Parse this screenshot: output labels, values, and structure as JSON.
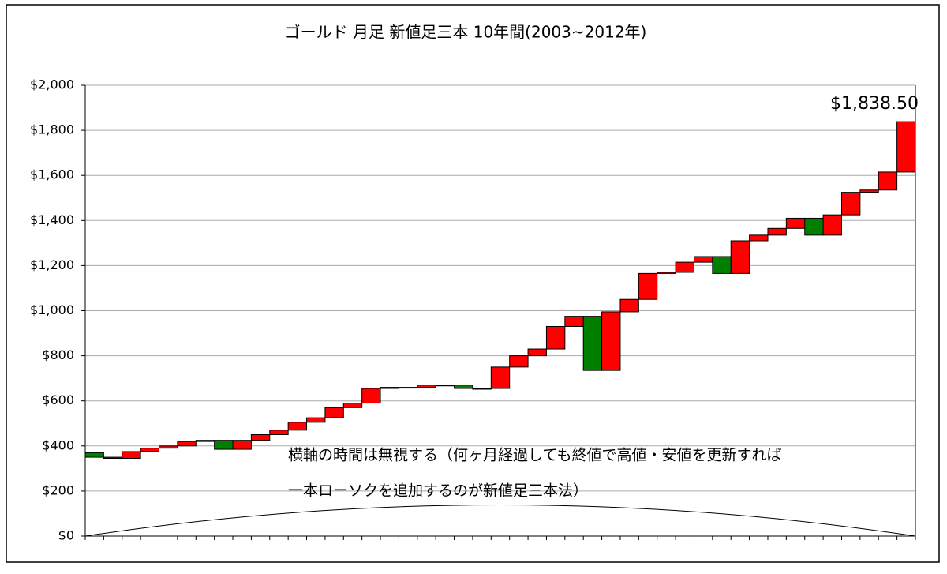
{
  "chart_data": {
    "type": "candlestick",
    "title": "ゴールド  月足  新値足三本 10年間(2003~2012年)",
    "open": [
      370,
      350,
      345,
      375,
      390,
      400,
      420,
      425,
      385,
      425,
      450,
      470,
      505,
      525,
      570,
      590,
      655,
      660,
      660,
      670,
      670,
      655,
      655,
      750,
      800,
      830,
      930,
      975,
      735,
      995,
      1050,
      1165,
      1170,
      1215,
      1240,
      1165,
      1310,
      1335,
      1365,
      1410,
      1335,
      1425,
      1525,
      1535,
      1615
    ],
    "close": [
      350,
      345,
      375,
      390,
      400,
      420,
      425,
      385,
      425,
      450,
      470,
      505,
      525,
      570,
      590,
      655,
      660,
      660,
      670,
      670,
      655,
      655,
      750,
      800,
      830,
      930,
      975,
      735,
      995,
      1050,
      1165,
      1170,
      1215,
      1240,
      1165,
      1310,
      1335,
      1365,
      1410,
      1335,
      1425,
      1525,
      1535,
      1615,
      1838.5
    ],
    "close_labels": [
      null,
      null,
      null,
      null,
      null,
      null,
      null,
      null,
      null,
      null,
      null,
      null,
      null,
      null,
      null,
      null,
      null,
      null,
      null,
      null,
      null,
      null,
      null,
      null,
      null,
      null,
      null,
      null,
      null,
      null,
      null,
      null,
      null,
      null,
      null,
      null,
      null,
      null,
      null,
      null,
      null,
      null,
      null,
      null,
      "$1,838.50"
    ],
    "up_color": "#ff0000",
    "down_color": "#008000",
    "ylim": [
      0,
      2000
    ],
    "yticks": [
      {
        "value": 0,
        "label": "$0"
      },
      {
        "value": 200,
        "label": "$200"
      },
      {
        "value": 400,
        "label": "$400"
      },
      {
        "value": 600,
        "label": "$600"
      },
      {
        "value": 800,
        "label": "$800"
      },
      {
        "value": 1000,
        "label": "$1,000"
      },
      {
        "value": 1200,
        "label": "$1,200"
      },
      {
        "value": 1400,
        "label": "$1,400"
      },
      {
        "value": 1600,
        "label": "$1,600"
      },
      {
        "value": 1800,
        "label": "$1,800"
      },
      {
        "value": 2000,
        "label": "$2,000"
      }
    ],
    "grid": true,
    "annotations": [
      "横軸の時間は無視する（何ヶ月経過しても終値で高値・安値を更新すれば",
      "一本ローソクを追加するのが新値足三本法）"
    ]
  }
}
